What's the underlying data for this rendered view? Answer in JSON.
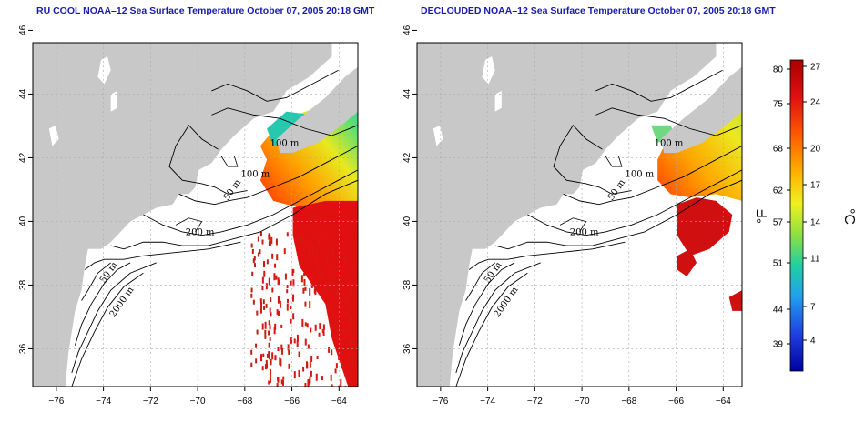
{
  "maps": [
    {
      "id": "left",
      "title": "RU COOL NOAA–12 Sea Surface Temperature October 07, 2005 20:18 GMT",
      "contour_labels": [
        "100 m",
        "100 m",
        "50 m",
        "200 m",
        "50 m",
        "2000 m"
      ]
    },
    {
      "id": "right",
      "title": "DECLOUDED NOAA–12 Sea Surface Temperature October 07, 2005 20:18 GMT",
      "contour_labels": [
        "100 m",
        "100 m",
        "50 m",
        "200 m",
        "50 m",
        "2000 m"
      ]
    }
  ],
  "axes": {
    "lon_ticks": [
      "−76",
      "−74",
      "−72",
      "−70",
      "−68",
      "−66",
      "−64"
    ],
    "lat_ticks": [
      "36",
      "38",
      "40",
      "42",
      "44",
      "46"
    ]
  },
  "colorbar": {
    "fahrenheit_ticks": [
      "80",
      "75",
      "68",
      "62",
      "57",
      "51",
      "44",
      "39"
    ],
    "celsius_ticks": [
      "27",
      "24",
      "20",
      "17",
      "14",
      "11",
      "7",
      "4"
    ],
    "fahrenheit_unit": "°F",
    "celsius_unit": "°C",
    "colors": [
      "#aa0000",
      "#e01010",
      "#ff5a00",
      "#ffb000",
      "#f0f020",
      "#90e040",
      "#20d0a0",
      "#20a0f0",
      "#2040e0",
      "#0000a0"
    ]
  },
  "colors": {
    "land": "#c8c8c8",
    "contour": "#000000",
    "grid": "#aaaaaa",
    "title": "#1a1ab0"
  }
}
